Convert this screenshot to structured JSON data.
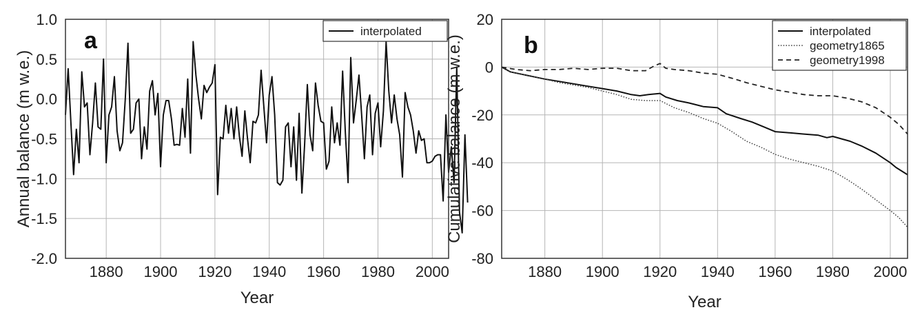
{
  "chart_data": [
    {
      "type": "line",
      "panel_label": "a",
      "xlabel": "Year",
      "ylabel": "Annual balance (m w.e.)",
      "xlim": [
        1865,
        2006
      ],
      "ylim": [
        -2.0,
        1.0
      ],
      "xticks": [
        1880,
        1900,
        1920,
        1940,
        1960,
        1980,
        2000
      ],
      "yticks": [
        "1.0",
        "0.5",
        "0.0",
        "-0.5",
        "-1.0",
        "-1.5",
        "-2.0"
      ],
      "ytick_values": [
        1.0,
        0.5,
        0.0,
        -0.5,
        -1.0,
        -1.5,
        -2.0
      ],
      "grid": true,
      "legend_position": "top-right",
      "series": [
        {
          "name": "interpolated",
          "style": "solid",
          "color": "#111111",
          "x_start": 1865,
          "values": [
            -0.2,
            0.38,
            -0.3,
            -0.95,
            -0.38,
            -0.8,
            0.34,
            -0.1,
            -0.05,
            -0.7,
            -0.3,
            0.2,
            -0.35,
            -0.38,
            0.5,
            -0.8,
            -0.2,
            -0.1,
            0.28,
            -0.4,
            -0.65,
            -0.55,
            0.0,
            0.7,
            -0.43,
            -0.38,
            -0.05,
            0.0,
            -0.75,
            -0.35,
            -0.63,
            0.1,
            0.23,
            -0.2,
            0.07,
            -0.85,
            -0.2,
            -0.02,
            -0.02,
            -0.25,
            -0.58,
            -0.57,
            -0.58,
            -0.12,
            -0.48,
            0.25,
            -0.68,
            0.72,
            0.3,
            0.0,
            -0.25,
            0.17,
            0.08,
            0.15,
            0.2,
            0.43,
            -1.2,
            -0.48,
            -0.5,
            -0.08,
            -0.43,
            -0.12,
            -0.5,
            -0.1,
            -0.47,
            -0.72,
            -0.15,
            -0.5,
            -0.8,
            -0.28,
            -0.3,
            -0.2,
            0.36,
            -0.1,
            -0.55,
            0.05,
            0.28,
            -0.2,
            -1.05,
            -1.08,
            -1.02,
            -0.35,
            -0.3,
            -0.85,
            -0.35,
            -1.02,
            -0.18,
            -1.18,
            -0.58,
            0.18,
            -0.45,
            -0.65,
            0.2,
            -0.08,
            -0.28,
            -0.3,
            -0.88,
            -0.78,
            -0.1,
            -0.55,
            -0.3,
            -0.58,
            0.35,
            -0.43,
            -1.05,
            0.52,
            -0.3,
            -0.02,
            0.3,
            -0.2,
            -0.75,
            -0.1,
            0.05,
            -0.7,
            -0.18,
            -0.05,
            -0.6,
            -0.15,
            0.72,
            0.1,
            -0.3,
            0.05,
            -0.25,
            -0.45,
            -0.98,
            0.08,
            -0.1,
            -0.2,
            -0.4,
            -0.68,
            -0.4,
            -0.52,
            -0.5,
            -0.8,
            -0.8,
            -0.78,
            -0.72,
            -0.7,
            -0.7,
            -1.28,
            -0.2,
            -0.92,
            -0.6,
            -1.05,
            0.4,
            -1.42,
            -1.68,
            -0.45,
            -1.3
          ]
        }
      ]
    },
    {
      "type": "line",
      "panel_label": "b",
      "xlabel": "Year",
      "ylabel": "Cumulative balance (m w.e.)",
      "xlim": [
        1865,
        2006
      ],
      "ylim": [
        -80,
        20
      ],
      "xticks": [
        1880,
        1900,
        1920,
        1940,
        1960,
        1980,
        2000
      ],
      "yticks": [
        "20",
        "0",
        "-20",
        "-40",
        "-60",
        "-80"
      ],
      "ytick_values": [
        20,
        0,
        -20,
        -40,
        -60,
        -80
      ],
      "grid": true,
      "legend_position": "top-right",
      "series": [
        {
          "name": "interpolated",
          "style": "solid",
          "color": "#111111",
          "x": [
            1865,
            1868,
            1872,
            1876,
            1880,
            1885,
            1890,
            1895,
            1900,
            1905,
            1910,
            1913,
            1916,
            1920,
            1922,
            1926,
            1930,
            1935,
            1940,
            1943,
            1948,
            1952,
            1956,
            1960,
            1965,
            1970,
            1975,
            1978,
            1980,
            1983,
            1986,
            1990,
            1995,
            2000,
            2002,
            2006
          ],
          "y": [
            0,
            -2,
            -3,
            -4,
            -5,
            -6,
            -7,
            -8,
            -9,
            -10,
            -11.5,
            -12,
            -11.5,
            -11,
            -12.5,
            -14,
            -15,
            -16.5,
            -17,
            -19.5,
            -21.5,
            -23,
            -25,
            -27,
            -27.5,
            -28,
            -28.5,
            -29.5,
            -29,
            -30,
            -31,
            -33,
            -36,
            -40,
            -42,
            -45
          ]
        },
        {
          "name": "geometry1865",
          "style": "dotted",
          "color": "#444444",
          "x": [
            1865,
            1868,
            1872,
            1876,
            1880,
            1885,
            1890,
            1895,
            1900,
            1905,
            1910,
            1915,
            1920,
            1925,
            1930,
            1935,
            1940,
            1945,
            1950,
            1955,
            1960,
            1965,
            1970,
            1975,
            1980,
            1985,
            1990,
            1995,
            2000,
            2003,
            2006
          ],
          "y": [
            0,
            -2,
            -3,
            -4,
            -5,
            -6.5,
            -7.5,
            -8.5,
            -10,
            -11.5,
            -13.5,
            -14,
            -14,
            -17,
            -19,
            -21.5,
            -23.5,
            -27,
            -31,
            -33.5,
            -36.5,
            -38.5,
            -40,
            -41.5,
            -43.5,
            -47,
            -51,
            -55.5,
            -60,
            -63,
            -67
          ]
        },
        {
          "name": "geometry1998",
          "style": "dashed",
          "color": "#222222",
          "x": [
            1865,
            1870,
            1875,
            1880,
            1885,
            1890,
            1895,
            1900,
            1905,
            1910,
            1915,
            1918,
            1920,
            1922,
            1925,
            1930,
            1935,
            1940,
            1943,
            1946,
            1950,
            1955,
            1960,
            1965,
            1970,
            1975,
            1980,
            1985,
            1990,
            1995,
            2000,
            2003,
            2006
          ],
          "y": [
            0,
            -1,
            -1.5,
            -1,
            -1,
            -0.5,
            -1,
            -0.5,
            -0.5,
            -1.5,
            -1.5,
            0.5,
            1.5,
            -0.5,
            -1,
            -1.5,
            -2.5,
            -3,
            -4,
            -5,
            -6.5,
            -8,
            -9.5,
            -10.5,
            -11.5,
            -12,
            -12,
            -13,
            -14.5,
            -17,
            -21,
            -24,
            -28
          ]
        }
      ]
    }
  ]
}
